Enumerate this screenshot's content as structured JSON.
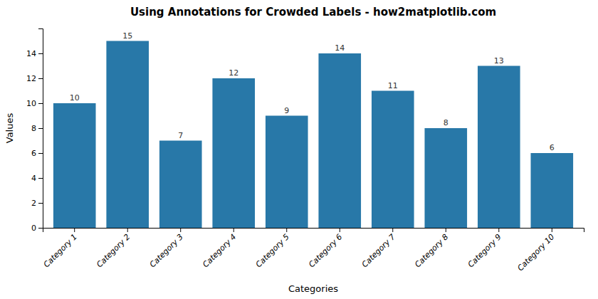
{
  "chart_data": {
    "type": "bar",
    "title": "Using Annotations for Crowded Labels - how2matplotlib.com",
    "xlabel": "Categories",
    "ylabel": "Values",
    "categories": [
      "Category 1",
      "Category 2",
      "Category 3",
      "Category 4",
      "Category 5",
      "Category 6",
      "Category 7",
      "Category 8",
      "Category 9",
      "Category 10"
    ],
    "values": [
      10,
      15,
      7,
      12,
      9,
      14,
      11,
      8,
      13,
      6
    ],
    "color": "#2878a8",
    "ylim": [
      0,
      16
    ],
    "yticks": [
      0,
      2,
      4,
      6,
      8,
      10,
      12,
      14
    ],
    "data_labels": true
  }
}
